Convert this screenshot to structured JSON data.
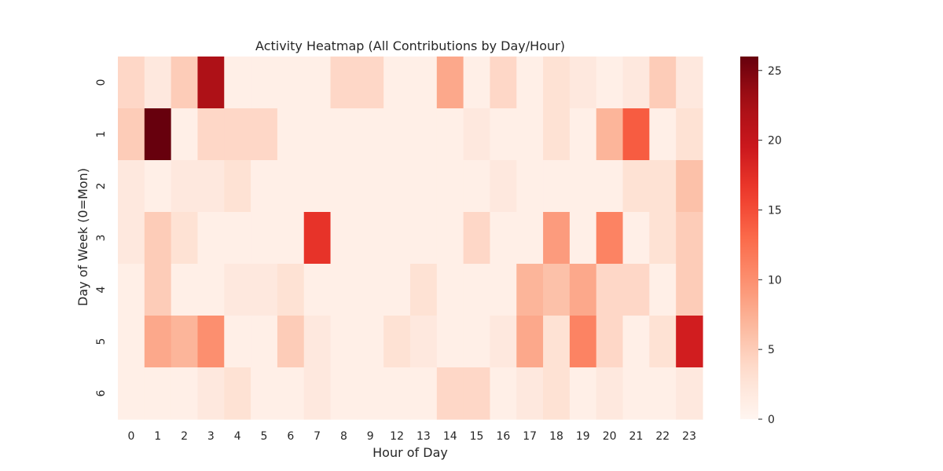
{
  "chart_data": {
    "type": "heatmap",
    "title": "Activity Heatmap (All Contributions by Day/Hour)",
    "xlabel": "Hour of Day",
    "ylabel": "Day of Week (0=Mon)",
    "x_categories": [
      "0",
      "1",
      "2",
      "3",
      "4",
      "5",
      "6",
      "7",
      "8",
      "9",
      "12",
      "13",
      "14",
      "15",
      "16",
      "17",
      "18",
      "19",
      "20",
      "21",
      "22",
      "23"
    ],
    "y_categories": [
      "0",
      "1",
      "2",
      "3",
      "4",
      "5",
      "6"
    ],
    "values": [
      [
        4,
        2,
        5,
        22,
        1,
        1,
        1,
        1,
        4,
        4,
        1,
        1,
        8,
        1,
        4,
        1,
        3,
        2,
        1,
        2,
        5,
        2
      ],
      [
        5,
        26,
        1,
        4,
        4,
        4,
        1,
        1,
        1,
        1,
        1,
        1,
        1,
        2,
        1,
        1,
        3,
        1,
        7,
        14,
        1,
        3
      ],
      [
        2,
        1,
        2,
        2,
        3,
        1,
        1,
        1,
        1,
        1,
        1,
        1,
        1,
        1,
        2,
        1,
        1,
        1,
        1,
        3,
        3,
        6
      ],
      [
        2,
        5,
        3,
        1,
        1,
        1,
        1,
        17,
        1,
        1,
        1,
        1,
        1,
        4,
        1,
        1,
        9,
        1,
        11,
        1,
        3,
        5
      ],
      [
        1,
        5,
        1,
        1,
        2,
        2,
        3,
        1,
        1,
        1,
        1,
        3,
        1,
        1,
        1,
        7,
        6,
        8,
        4,
        4,
        1,
        5
      ],
      [
        1,
        8,
        7,
        10,
        1,
        1,
        5,
        2,
        1,
        1,
        3,
        2,
        1,
        1,
        2,
        8,
        3,
        11,
        4,
        1,
        3,
        19
      ],
      [
        1,
        1,
        1,
        2,
        3,
        1,
        1,
        2,
        1,
        1,
        1,
        1,
        4,
        4,
        1,
        2,
        3,
        1,
        2,
        1,
        1,
        2
      ]
    ],
    "colorbar": {
      "min": 0,
      "max": 26,
      "ticks": [
        0,
        5,
        10,
        15,
        20,
        25
      ]
    },
    "colormap": "Reds",
    "grid": false
  }
}
